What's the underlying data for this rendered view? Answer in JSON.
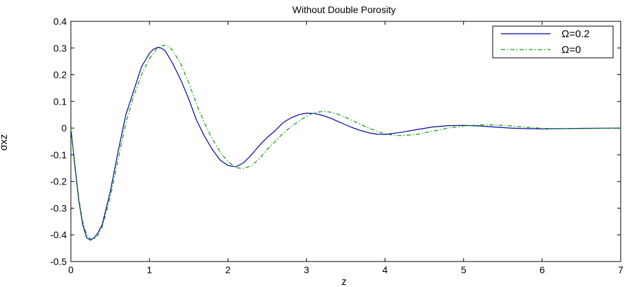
{
  "chart_data": {
    "type": "line",
    "title": "Without Double Porosity",
    "xlabel": "z",
    "ylabel": "σxz",
    "xlim": [
      0,
      7
    ],
    "ylim": [
      -0.5,
      0.4
    ],
    "x_ticks": [
      "0",
      "1",
      "2",
      "3",
      "4",
      "5",
      "6",
      "7"
    ],
    "y_ticks": [
      "0.4",
      "0.3",
      "0.2",
      "0.1",
      "0",
      "-0.1",
      "-0.2",
      "-0.3",
      "-0.4",
      "-0.5"
    ],
    "grid": false,
    "legend_position": "top-right",
    "series": [
      {
        "name": "Ω=0.2",
        "color": "#0000a0",
        "style": "solid",
        "x": [
          0,
          0.05,
          0.1,
          0.15,
          0.2,
          0.25,
          0.3,
          0.35,
          0.4,
          0.5,
          0.6,
          0.7,
          0.8,
          0.9,
          1.0,
          1.05,
          1.1,
          1.15,
          1.2,
          1.3,
          1.4,
          1.5,
          1.6,
          1.7,
          1.8,
          1.9,
          2.0,
          2.1,
          2.2,
          2.3,
          2.4,
          2.5,
          2.6,
          2.7,
          2.8,
          2.9,
          3.0,
          3.1,
          3.2,
          3.3,
          3.4,
          3.5,
          3.6,
          3.7,
          3.8,
          3.9,
          4.0,
          4.2,
          4.4,
          4.6,
          4.8,
          5.0,
          5.2,
          5.4,
          5.6,
          5.8,
          6.0,
          6.5,
          7.0
        ],
        "y": [
          0,
          -0.14,
          -0.27,
          -0.36,
          -0.41,
          -0.42,
          -0.41,
          -0.39,
          -0.36,
          -0.24,
          -0.09,
          0.05,
          0.14,
          0.23,
          0.28,
          0.295,
          0.302,
          0.3,
          0.29,
          0.24,
          0.18,
          0.11,
          0.03,
          -0.03,
          -0.08,
          -0.12,
          -0.14,
          -0.145,
          -0.13,
          -0.1,
          -0.065,
          -0.035,
          -0.01,
          0.02,
          0.038,
          0.05,
          0.056,
          0.055,
          0.048,
          0.038,
          0.025,
          0.012,
          0.0,
          -0.01,
          -0.018,
          -0.023,
          -0.024,
          -0.016,
          -0.006,
          0.004,
          0.009,
          0.01,
          0.008,
          0.004,
          0.0,
          -0.002,
          -0.003,
          -0.001,
          0.0
        ]
      },
      {
        "name": "Ω=0",
        "color": "#00a000",
        "style": "dashdot",
        "x": [
          0,
          0.05,
          0.1,
          0.15,
          0.2,
          0.25,
          0.3,
          0.35,
          0.4,
          0.5,
          0.6,
          0.7,
          0.8,
          0.9,
          1.0,
          1.1,
          1.15,
          1.2,
          1.25,
          1.3,
          1.4,
          1.5,
          1.6,
          1.7,
          1.8,
          1.9,
          2.0,
          2.1,
          2.2,
          2.3,
          2.4,
          2.5,
          2.6,
          2.7,
          2.8,
          2.9,
          3.0,
          3.1,
          3.2,
          3.3,
          3.4,
          3.5,
          3.6,
          3.7,
          3.8,
          3.9,
          4.0,
          4.1,
          4.2,
          4.4,
          4.6,
          4.8,
          5.0,
          5.2,
          5.4,
          5.6,
          5.8,
          6.0,
          6.5,
          7.0
        ],
        "y": [
          0,
          -0.13,
          -0.26,
          -0.35,
          -0.4,
          -0.415,
          -0.415,
          -0.4,
          -0.37,
          -0.26,
          -0.12,
          0.02,
          0.12,
          0.2,
          0.26,
          0.3,
          0.308,
          0.31,
          0.305,
          0.29,
          0.24,
          0.17,
          0.09,
          0.02,
          -0.04,
          -0.09,
          -0.125,
          -0.148,
          -0.152,
          -0.14,
          -0.115,
          -0.08,
          -0.05,
          -0.02,
          0.005,
          0.025,
          0.045,
          0.058,
          0.062,
          0.06,
          0.052,
          0.04,
          0.026,
          0.012,
          -0.001,
          -0.012,
          -0.021,
          -0.026,
          -0.028,
          -0.024,
          -0.012,
          0.0,
          0.008,
          0.012,
          0.012,
          0.008,
          0.003,
          -0.001,
          -0.002,
          0.0
        ]
      }
    ]
  }
}
